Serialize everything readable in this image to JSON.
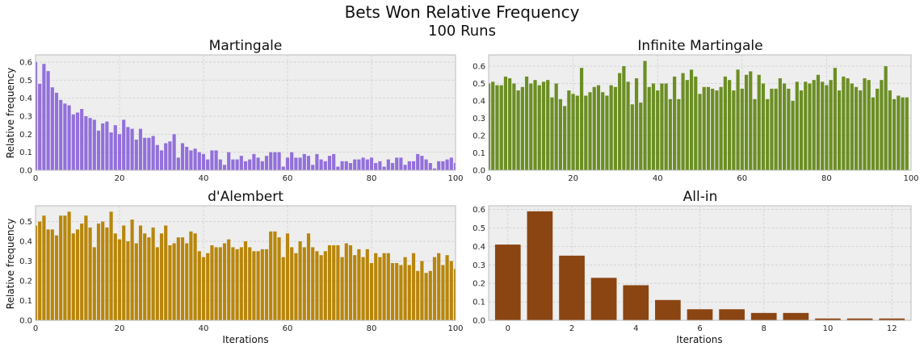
{
  "figure": {
    "title": "Bets Won Relative Frequency",
    "subtitle": "100 Runs",
    "background": "#ffffff",
    "axes_facecolor": "#eeeeee",
    "grid_color": "#cfcfcf"
  },
  "chart_data": [
    {
      "type": "bar",
      "title": "Martingale",
      "xlabel": "",
      "ylabel": "Relative frequency",
      "color": "#9370db",
      "xlim": [
        0,
        100
      ],
      "ylim": [
        0,
        0.64
      ],
      "xticks": [
        0,
        20,
        40,
        60,
        80,
        100
      ],
      "yticks": [
        0,
        0.1,
        0.2,
        0.3,
        0.4,
        0.5,
        0.6
      ],
      "x_start": 0,
      "values": [
        0.6,
        0.48,
        0.59,
        0.55,
        0.46,
        0.43,
        0.39,
        0.37,
        0.36,
        0.31,
        0.32,
        0.34,
        0.3,
        0.29,
        0.28,
        0.22,
        0.26,
        0.27,
        0.21,
        0.25,
        0.2,
        0.28,
        0.24,
        0.23,
        0.17,
        0.23,
        0.18,
        0.18,
        0.19,
        0.14,
        0.11,
        0.15,
        0.16,
        0.2,
        0.07,
        0.15,
        0.13,
        0.11,
        0.12,
        0.1,
        0.09,
        0.06,
        0.11,
        0.11,
        0.06,
        0.03,
        0.1,
        0.06,
        0.06,
        0.08,
        0.05,
        0.06,
        0.09,
        0.07,
        0.05,
        0.08,
        0.1,
        0.1,
        0.1,
        0.02,
        0.07,
        0.1,
        0.07,
        0.07,
        0.09,
        0.08,
        0.03,
        0.09,
        0.06,
        0.05,
        0.08,
        0.09,
        0.02,
        0.05,
        0.05,
        0.04,
        0.06,
        0.06,
        0.07,
        0.06,
        0.07,
        0.04,
        0.05,
        0.02,
        0.06,
        0.04,
        0.07,
        0.07,
        0.03,
        0.05,
        0.05,
        0.09,
        0.08,
        0.06,
        0.04,
        0.01,
        0.05,
        0.05,
        0.06,
        0.07,
        0.04
      ],
      "grid": true
    },
    {
      "type": "bar",
      "title": "Infinite Martingale",
      "xlabel": "",
      "ylabel": "",
      "color": "#6b8e23",
      "xlim": [
        0,
        100
      ],
      "ylim": [
        0,
        0.665
      ],
      "xticks": [
        0,
        20,
        40,
        60,
        80,
        100
      ],
      "yticks": [
        0,
        0.1,
        0.2,
        0.3,
        0.4,
        0.5,
        0.6
      ],
      "x_start": 0,
      "values": [
        0.5,
        0.51,
        0.49,
        0.49,
        0.54,
        0.53,
        0.5,
        0.46,
        0.48,
        0.54,
        0.5,
        0.52,
        0.49,
        0.51,
        0.52,
        0.42,
        0.5,
        0.41,
        0.37,
        0.46,
        0.44,
        0.43,
        0.59,
        0.43,
        0.45,
        0.48,
        0.49,
        0.45,
        0.43,
        0.49,
        0.48,
        0.56,
        0.6,
        0.51,
        0.38,
        0.53,
        0.39,
        0.63,
        0.48,
        0.5,
        0.46,
        0.5,
        0.5,
        0.41,
        0.54,
        0.41,
        0.56,
        0.52,
        0.58,
        0.54,
        0.44,
        0.48,
        0.48,
        0.47,
        0.46,
        0.48,
        0.54,
        0.52,
        0.46,
        0.58,
        0.47,
        0.55,
        0.57,
        0.41,
        0.55,
        0.5,
        0.41,
        0.47,
        0.47,
        0.53,
        0.5,
        0.47,
        0.4,
        0.51,
        0.46,
        0.51,
        0.5,
        0.52,
        0.55,
        0.51,
        0.49,
        0.52,
        0.59,
        0.46,
        0.54,
        0.53,
        0.5,
        0.48,
        0.46,
        0.53,
        0.52,
        0.42,
        0.47,
        0.52,
        0.6,
        0.46,
        0.41,
        0.43,
        0.42,
        0.42
      ],
      "grid": true
    },
    {
      "type": "bar",
      "title": "d'Alembert",
      "xlabel": "Iterations",
      "ylabel": "Relative frequency",
      "color": "#b8860b",
      "xlim": [
        0,
        100
      ],
      "ylim": [
        0,
        0.58
      ],
      "xticks": [
        0,
        20,
        40,
        60,
        80,
        100
      ],
      "yticks": [
        0,
        0.1,
        0.2,
        0.3,
        0.4,
        0.5
      ],
      "x_start": 0,
      "values": [
        0.48,
        0.5,
        0.53,
        0.46,
        0.46,
        0.43,
        0.53,
        0.53,
        0.55,
        0.44,
        0.46,
        0.49,
        0.53,
        0.47,
        0.37,
        0.49,
        0.5,
        0.47,
        0.55,
        0.44,
        0.41,
        0.48,
        0.4,
        0.51,
        0.39,
        0.48,
        0.44,
        0.42,
        0.47,
        0.37,
        0.44,
        0.48,
        0.38,
        0.39,
        0.42,
        0.42,
        0.39,
        0.45,
        0.44,
        0.35,
        0.32,
        0.34,
        0.38,
        0.37,
        0.37,
        0.39,
        0.41,
        0.37,
        0.36,
        0.37,
        0.4,
        0.37,
        0.35,
        0.35,
        0.36,
        0.36,
        0.45,
        0.45,
        0.42,
        0.32,
        0.44,
        0.37,
        0.34,
        0.4,
        0.37,
        0.44,
        0.37,
        0.35,
        0.33,
        0.35,
        0.38,
        0.38,
        0.38,
        0.32,
        0.39,
        0.38,
        0.33,
        0.36,
        0.32,
        0.36,
        0.29,
        0.34,
        0.32,
        0.34,
        0.34,
        0.29,
        0.29,
        0.28,
        0.32,
        0.28,
        0.34,
        0.25,
        0.3,
        0.24,
        0.25,
        0.32,
        0.34,
        0.28,
        0.33,
        0.3,
        0.26
      ],
      "grid": true
    },
    {
      "type": "bar",
      "title": "All-in",
      "xlabel": "Iterations",
      "ylabel": "",
      "color": "#8b4513",
      "xlim": [
        -0.6,
        12.6
      ],
      "ylim": [
        0,
        0.62
      ],
      "xticks": [
        0,
        2,
        4,
        6,
        8,
        10,
        12
      ],
      "yticks": [
        0,
        0.1,
        0.2,
        0.3,
        0.4,
        0.5,
        0.6
      ],
      "x_start": 0,
      "values": [
        0.41,
        0.59,
        0.35,
        0.23,
        0.19,
        0.11,
        0.06,
        0.06,
        0.04,
        0.04,
        0.01,
        0.01,
        0.01
      ],
      "grid": true
    }
  ]
}
